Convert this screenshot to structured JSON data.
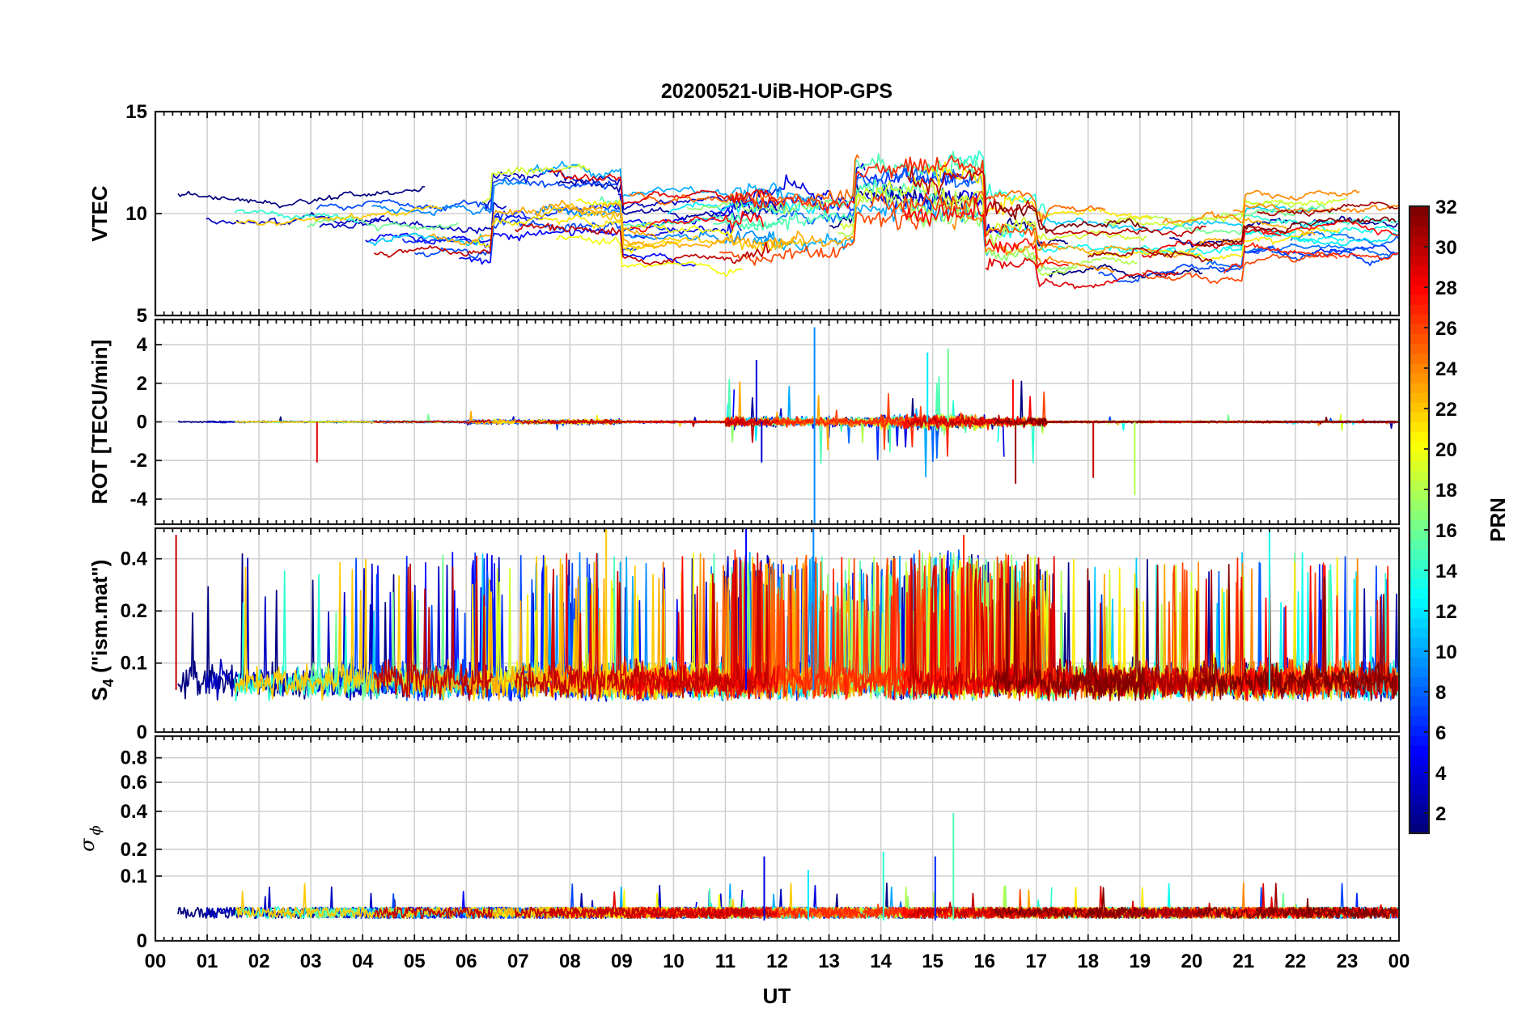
{
  "chart_data": {
    "type": "line",
    "title": "20200521-UiB-HOP-GPS",
    "xlabel": "UT",
    "x_range_hours": [
      0,
      24
    ],
    "x_tick_labels": [
      "00",
      "01",
      "02",
      "03",
      "04",
      "05",
      "06",
      "07",
      "08",
      "09",
      "10",
      "11",
      "12",
      "13",
      "14",
      "15",
      "16",
      "17",
      "18",
      "19",
      "20",
      "21",
      "22",
      "23",
      "00"
    ],
    "grid": true,
    "panels": [
      {
        "id": "vtec",
        "ylabel": "VTEC",
        "ylim": [
          5,
          15
        ],
        "y_ticks": [
          5,
          10,
          15
        ],
        "y_tick_labels": [
          "5",
          "10",
          "15"
        ],
        "series_summary": "VTEC per satellite, mostly 6–13 TECU; higher near 07–09 UT and 14–16 UT"
      },
      {
        "id": "rot",
        "ylabel": "ROT [TECU/min]",
        "ylim": [
          -5.3,
          5.3
        ],
        "y_ticks": [
          -4,
          -2,
          0,
          2,
          4
        ],
        "y_tick_labels": [
          "-4",
          "-2",
          "0",
          "2",
          "4"
        ],
        "series_summary": "Rate of TEC, near 0 with spikes up to about ±4–5 between 11 and 17 UT"
      },
      {
        "id": "s4",
        "ylabel_main": "S",
        "ylabel_sub": "4",
        "ylabel_rest": " (\"ism.mat\")",
        "scale": "log",
        "ylim": [
          0.04,
          0.6
        ],
        "y_ticks": [
          0.04,
          0.1,
          0.2,
          0.4
        ],
        "y_tick_labels": [
          "0",
          "0.1",
          "0.2",
          "0.4"
        ],
        "series_summary": "S4 index per satellite, baseline about 0.05–0.1 with bursts up to about 0.6"
      },
      {
        "id": "sigma_phi",
        "ylabel_main": "σ",
        "ylabel_sub": "ϕ",
        "scale": "sqrt",
        "ylim": [
          0,
          1
        ],
        "y_ticks": [
          0,
          0.1,
          0.2,
          0.4,
          0.6,
          0.8
        ],
        "y_tick_labels": [
          "0",
          "0.1",
          "0.2",
          "0.4",
          "0.6",
          "0.8"
        ],
        "series_summary": "Phase scintillation near 0.02 with spikes around 11.8, 14, 15 and 15.4 UT (max about 0.39)"
      }
    ],
    "colorbar": {
      "label": "PRN",
      "colormap": "jet",
      "range": [
        1,
        32
      ],
      "tick_values": [
        2,
        4,
        6,
        8,
        10,
        12,
        14,
        16,
        18,
        20,
        22,
        24,
        26,
        28,
        30,
        32
      ],
      "tick_labels": [
        "2",
        "4",
        "6",
        "8",
        "10",
        "12",
        "14",
        "16",
        "18",
        "20",
        "22",
        "24",
        "26",
        "28",
        "30",
        "32"
      ]
    },
    "spikes": {
      "rot": [
        {
          "prn": 4,
          "t": 11.6,
          "v": 3.2
        },
        {
          "prn": 4,
          "t": 11.7,
          "v": -2.1
        },
        {
          "prn": 9,
          "t": 12.72,
          "v": 4.9
        },
        {
          "prn": 9,
          "t": 12.72,
          "v": -5.3
        },
        {
          "prn": 12,
          "t": 14.9,
          "v": 3.6
        },
        {
          "prn": 16,
          "t": 15.3,
          "v": 3.8
        },
        {
          "prn": 18,
          "t": 18.9,
          "v": -3.8
        },
        {
          "prn": 29,
          "t": 3.12,
          "v": -2.1
        },
        {
          "prn": 31,
          "t": 16.6,
          "v": -3.2
        },
        {
          "prn": 30,
          "t": 18.1,
          "v": -2.9
        },
        {
          "prn": 28,
          "t": 16.55,
          "v": 2.2
        }
      ],
      "s4": [
        {
          "prn": 30,
          "t": 0.4,
          "v": 0.55
        },
        {
          "prn": 22,
          "t": 8.7,
          "v": 0.6
        },
        {
          "prn": 5,
          "t": 11.4,
          "v": 0.6
        },
        {
          "prn": 9,
          "t": 12.7,
          "v": 0.6
        },
        {
          "prn": 13,
          "t": 21.5,
          "v": 0.6
        },
        {
          "prn": 27,
          "t": 15.6,
          "v": 0.55
        }
      ],
      "sigma_phi": [
        {
          "prn": 4,
          "t": 11.75,
          "v": 0.17
        },
        {
          "prn": 12,
          "t": 12.6,
          "v": 0.12
        },
        {
          "prn": 14,
          "t": 14.05,
          "v": 0.19
        },
        {
          "prn": 6,
          "t": 15.05,
          "v": 0.17
        },
        {
          "prn": 15,
          "t": 15.4,
          "v": 0.39
        }
      ]
    }
  }
}
